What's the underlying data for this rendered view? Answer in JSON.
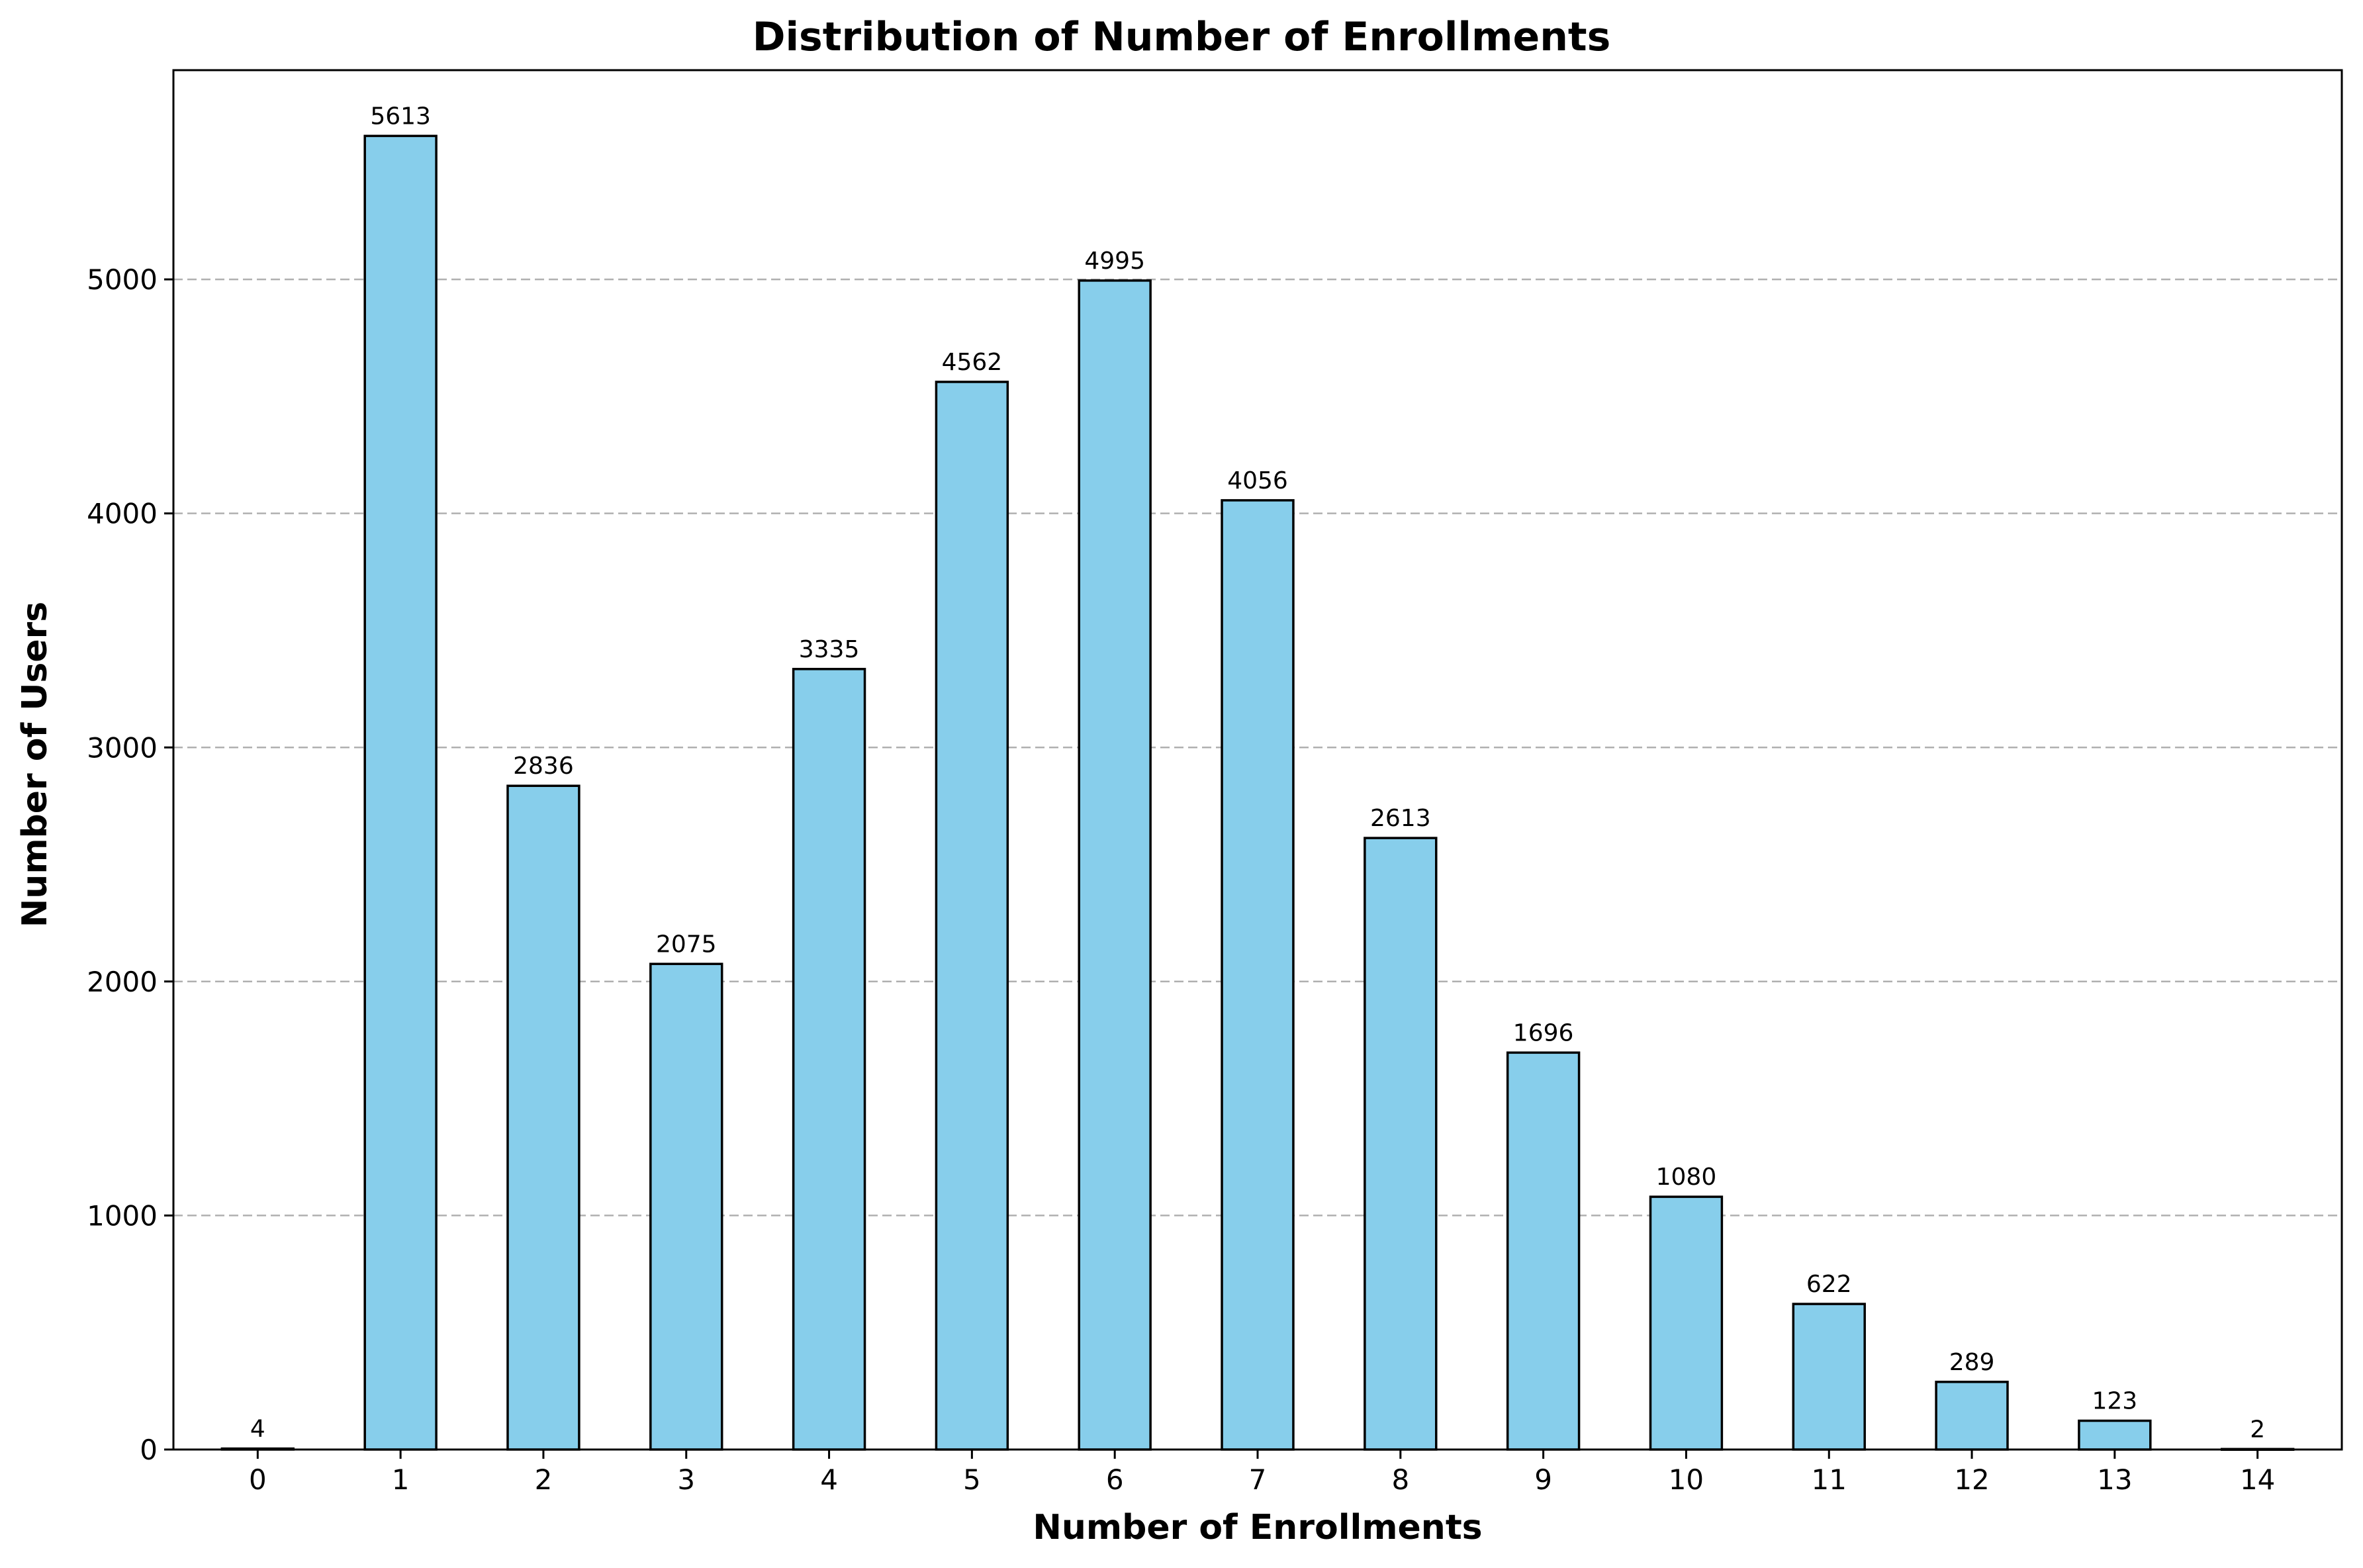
{
  "chart_data": {
    "type": "bar",
    "title": "Distribution of Number of Enrollments",
    "xlabel": "Number of Enrollments",
    "ylabel": "Number of Users",
    "categories": [
      "0",
      "1",
      "2",
      "3",
      "4",
      "5",
      "6",
      "7",
      "8",
      "9",
      "10",
      "11",
      "12",
      "13",
      "14"
    ],
    "values": [
      4,
      5613,
      2836,
      2075,
      3335,
      4562,
      4995,
      4056,
      2613,
      1696,
      1080,
      622,
      289,
      123,
      2
    ],
    "data_labels": [
      "4",
      "5613",
      "2836",
      "2075",
      "3335",
      "4562",
      "4995",
      "4056",
      "2613",
      "1696",
      "1080",
      "622",
      "289",
      "123",
      "2"
    ],
    "yticks": [
      0,
      1000,
      2000,
      3000,
      4000,
      5000
    ],
    "ytick_labels": [
      "0",
      "1000",
      "2000",
      "3000",
      "4000",
      "5000"
    ],
    "ylim": [
      0,
      5894
    ],
    "grid": "y-dashed",
    "bar_color": "#87CEEB",
    "edge_color": "#000000",
    "legend": "none"
  }
}
